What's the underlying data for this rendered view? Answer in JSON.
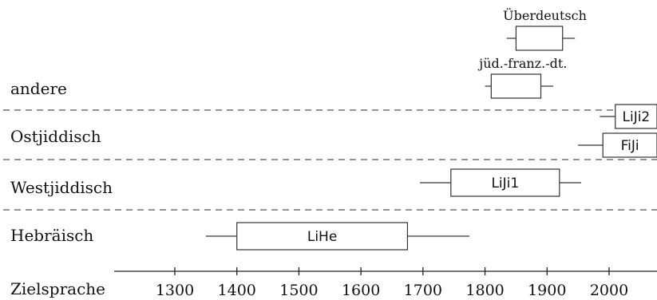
{
  "chart_data": {
    "type": "boxplot-timeline",
    "xlabel": "Zielsprache",
    "xticks": [
      1300,
      1400,
      1500,
      1600,
      1700,
      1800,
      1900,
      2000
    ],
    "rows": [
      "andere",
      "Ostjiddisch",
      "Westjiddisch",
      "Hebräisch"
    ],
    "items": [
      {
        "label": "Überdeutsch",
        "row": "andere",
        "whisker_min": 1835,
        "box_start": 1850,
        "box_end": 1925,
        "whisker_max": 1945
      },
      {
        "label": "jüd.-franz.-dt.",
        "row": "andere",
        "whisker_min": 1800,
        "box_start": 1810,
        "box_end": 1890,
        "whisker_max": 1910
      },
      {
        "label": "LiJi2",
        "row": "Ostjiddisch",
        "whisker_min": 1985,
        "box_start": 2010,
        "box_end": 2080,
        "whisker_max": 2080
      },
      {
        "label": "FiJi",
        "row": "Ostjiddisch",
        "whisker_min": 1950,
        "box_start": 1990,
        "box_end": 2080,
        "whisker_max": 2080
      },
      {
        "label": "LiJi1",
        "row": "Westjiddisch",
        "whisker_min": 1695,
        "box_start": 1745,
        "box_end": 1920,
        "whisker_max": 1955
      },
      {
        "label": "LiHe",
        "row": "Hebräisch",
        "whisker_min": 1350,
        "box_start": 1400,
        "box_end": 1675,
        "whisker_max": 1775
      }
    ]
  }
}
